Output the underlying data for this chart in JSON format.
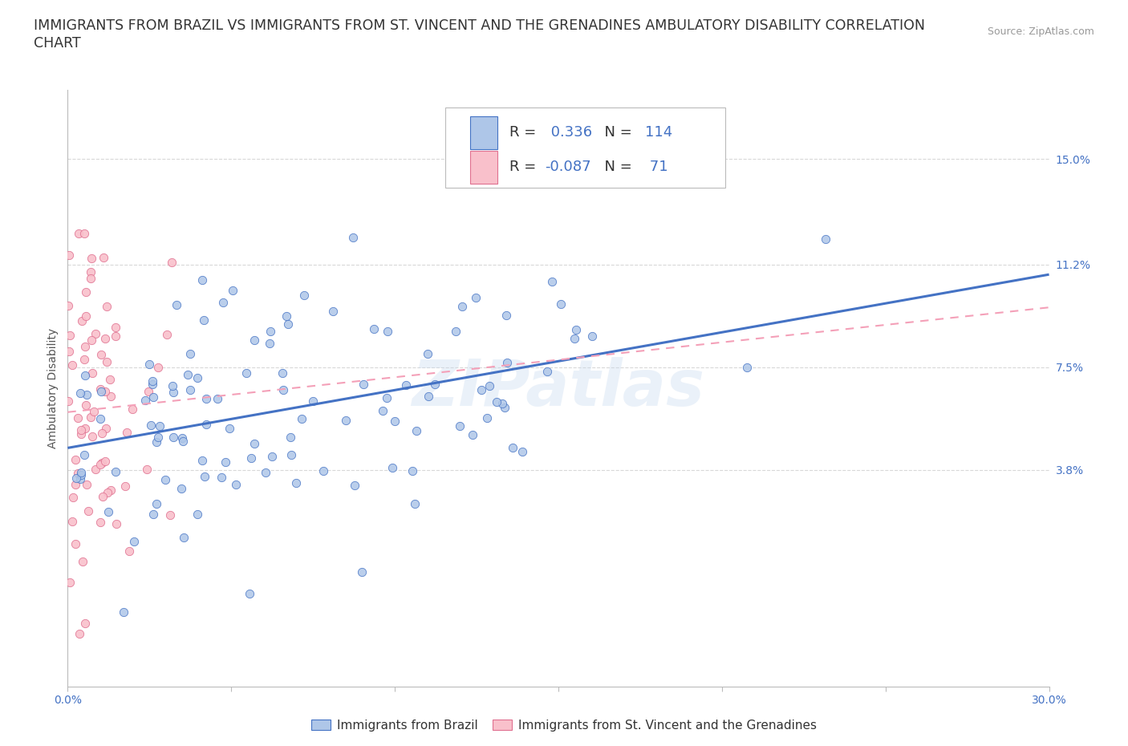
{
  "title_line1": "IMMIGRANTS FROM BRAZIL VS IMMIGRANTS FROM ST. VINCENT AND THE GRENADINES AMBULATORY DISABILITY CORRELATION",
  "title_line2": "CHART",
  "source_text": "Source: ZipAtlas.com",
  "ylabel": "Ambulatory Disability",
  "xlim": [
    0.0,
    0.3
  ],
  "ylim": [
    -0.04,
    0.175
  ],
  "xtick_positions": [
    0.0,
    0.05,
    0.1,
    0.15,
    0.2,
    0.25,
    0.3
  ],
  "xtick_labels": [
    "0.0%",
    "",
    "",
    "",
    "",
    "",
    "30.0%"
  ],
  "ytick_positions": [
    0.038,
    0.075,
    0.112,
    0.15
  ],
  "ytick_labels": [
    "3.8%",
    "7.5%",
    "11.2%",
    "15.0%"
  ],
  "brazil_fill_color": "#aec6e8",
  "brazil_edge_color": "#4472c4",
  "svg_fill_color": "#f9c0cb",
  "svg_edge_color": "#e07090",
  "brazil_line_color": "#4472c4",
  "svg_line_color": "#f4a0b8",
  "brazil_R": 0.336,
  "brazil_N": 114,
  "svg_R": -0.087,
  "svg_N": 71,
  "watermark": "ZIPatlas",
  "background_color": "#ffffff",
  "grid_color": "#d8d8d8",
  "title_fontsize": 12.5,
  "axis_label_fontsize": 10,
  "tick_fontsize": 10,
  "legend_fontsize": 13,
  "tick_color": "#4472c4"
}
